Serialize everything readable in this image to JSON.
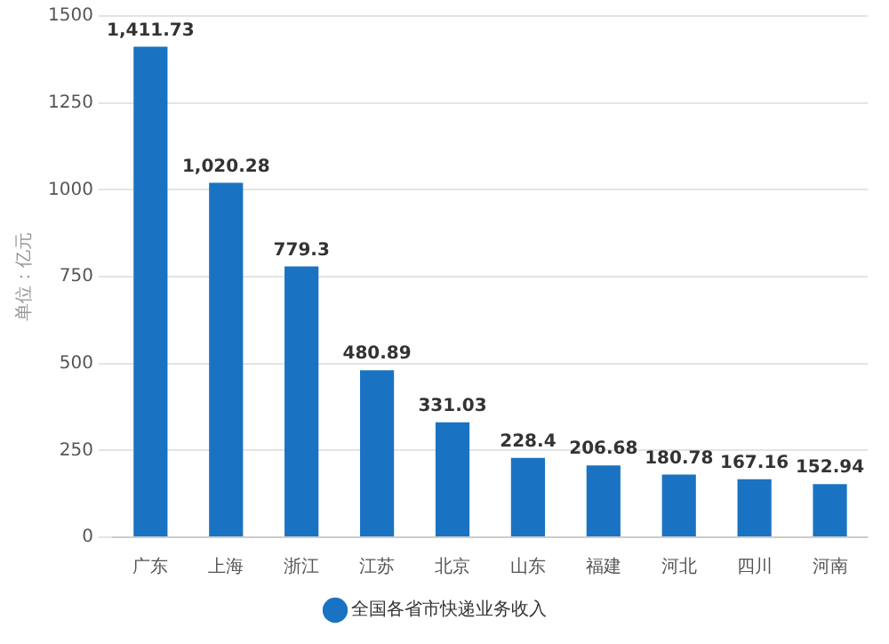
{
  "chart_data": {
    "type": "bar",
    "ylabel": "单位：亿元",
    "categories": [
      "广东",
      "上海",
      "浙江",
      "江苏",
      "北京",
      "山东",
      "福建",
      "河北",
      "四川",
      "河南"
    ],
    "series": [
      {
        "name": "全国各省市快递业务收入",
        "color": "#1a73c2",
        "values": [
          1411.73,
          1020.28,
          779.3,
          480.89,
          331.03,
          228.4,
          206.68,
          180.78,
          167.16,
          152.94
        ]
      }
    ],
    "value_labels": [
      "1,411.73",
      "1,020.28",
      "779.3",
      "480.89",
      "331.03",
      "228.4",
      "206.68",
      "180.78",
      "167.16",
      "152.94"
    ],
    "ylim": [
      0,
      1500
    ],
    "yticks": [
      0,
      250,
      500,
      750,
      1000,
      1250,
      1500
    ],
    "grid": "y",
    "legend": "bottom"
  }
}
